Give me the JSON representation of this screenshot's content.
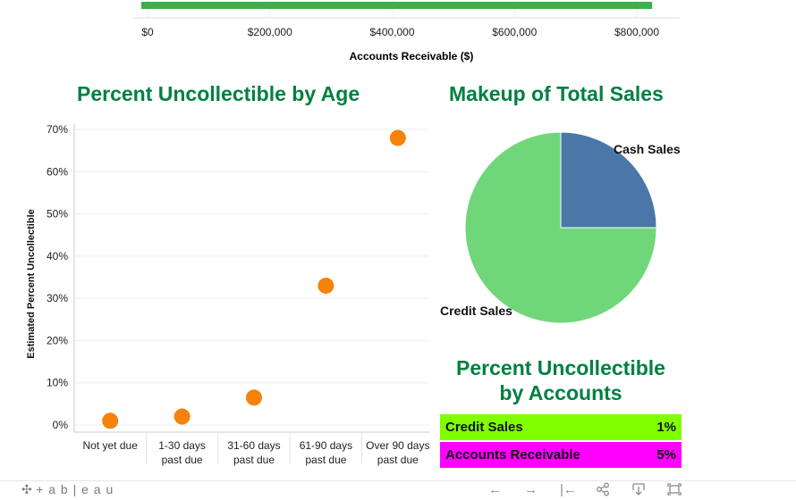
{
  "top_chart": {
    "xlabel": "Accounts Receivable ($)",
    "tick_labels": [
      "$0",
      "$200,000",
      "$400,000",
      "$600,000",
      "$800,000"
    ],
    "ticks": [
      0,
      200000,
      400000,
      600000,
      800000
    ],
    "bar_value": 825000,
    "bar_color": "#3cb04a"
  },
  "chart_data": [
    {
      "type": "scatter",
      "title": "Percent Uncollectible by Age",
      "ylabel": "Estimated Percent Uncollectible",
      "categories": [
        "Not yet due",
        "1-30 days past due",
        "31-60 days past due",
        "61-90 days past due",
        "Over 90 days past due"
      ],
      "category_lines": [
        [
          "Not yet due"
        ],
        [
          "1-30 days",
          "past due"
        ],
        [
          "31-60 days",
          "past due"
        ],
        [
          "61-90 days",
          "past due"
        ],
        [
          "Over 90 days",
          "past due"
        ]
      ],
      "values": [
        1,
        2,
        6.5,
        33,
        68
      ],
      "ylim": [
        -2,
        72
      ],
      "yticks": [
        0,
        10,
        20,
        30,
        40,
        50,
        60,
        70
      ],
      "ytick_labels": [
        "0%",
        "10%",
        "20%",
        "30%",
        "40%",
        "50%",
        "60%",
        "70%"
      ],
      "grid": true,
      "marker_color": "#f5820a"
    },
    {
      "type": "pie",
      "title": "Makeup of Total Sales",
      "slices": [
        {
          "label": "Cash Sales",
          "value": 25,
          "color": "#4a77a8"
        },
        {
          "label": "Credit Sales",
          "value": 75,
          "color": "#6fd77a"
        }
      ]
    },
    {
      "type": "table",
      "title_line1": "Percent Uncollectible",
      "title_line2": "by Accounts",
      "rows": [
        {
          "label": "Credit Sales",
          "value": "1%",
          "color": "#7fff00"
        },
        {
          "label": "Accounts Receivable",
          "value": "5%",
          "color": "#ff00ff"
        }
      ]
    }
  ],
  "footer": {
    "logo_text": "+ a b | e a u",
    "icons": [
      "tableau-logo-icon",
      "undo-icon",
      "redo-icon",
      "revert-icon",
      "share-icon",
      "download-icon",
      "fullscreen-icon"
    ]
  }
}
